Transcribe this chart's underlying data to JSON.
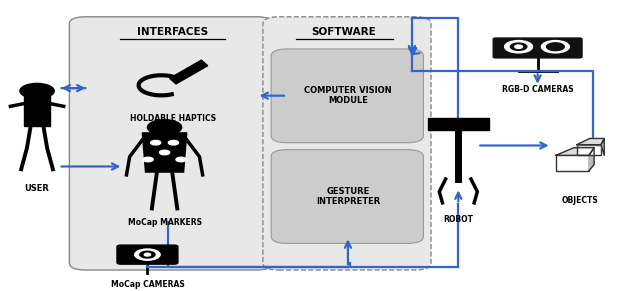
{
  "fig_width": 6.4,
  "fig_height": 2.91,
  "bg_color": "#ffffff",
  "outer_box_color": "#e8e8e8",
  "box_color": "#cccccc",
  "arrow_color": "#3366cc",
  "text_color": "#000000",
  "labels": {
    "interfaces": "INTERFACES",
    "software": "SOFTWARE",
    "cv_module": "COMPUTER VISION\nMODULE",
    "gesture": "GESTURE\nINTERPRETER",
    "user": "USER",
    "holdable": "HOLDABLE HAPTICS",
    "mocap_markers": "MoCap MARKERS",
    "mocap_cameras": "MoCap CAMERAS",
    "rgb_cameras": "RGB-D CAMERAS",
    "robot": "ROBOT",
    "objects": "OBJECTS"
  }
}
